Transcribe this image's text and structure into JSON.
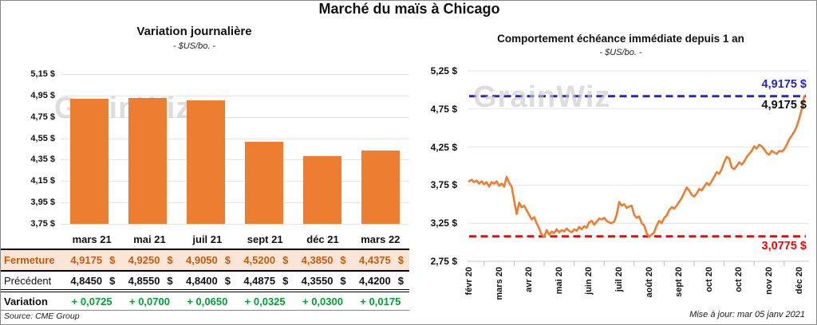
{
  "page": {
    "title": "Marché du maïs à Chicago",
    "watermark": "GrainWiz",
    "source_note": "Source: CME Group",
    "update_note": "Mise à jour: mar 05 janv 2021"
  },
  "colors": {
    "orange": "#ED7D31",
    "close_row_bg": "#FBE5D6",
    "close_text": "#C55A11",
    "variation_green": "#00A033",
    "ref_blue": "#2525CB",
    "ref_red": "#FE0000",
    "gridline": "#E4E4E4"
  },
  "chart_data": [
    {
      "type": "bar",
      "title": "Variation journalière",
      "subtitle": "- $US/bo. -",
      "categories": [
        "mars 21",
        "mai 21",
        "juil 21",
        "sept 21",
        "déc 21",
        "mars 22"
      ],
      "values": [
        4.9175,
        4.925,
        4.905,
        4.52,
        4.385,
        4.4375
      ],
      "ylim": [
        3.75,
        5.15
      ],
      "yticks": [
        5.15,
        4.95,
        4.75,
        4.55,
        4.35,
        4.15,
        3.95,
        3.75
      ],
      "ytick_labels": [
        "5,15 $",
        "4,95 $",
        "4,75 $",
        "4,55 $",
        "4,35 $",
        "4,15 $",
        "3,95 $",
        "3,75 $"
      ],
      "grid": true,
      "bar_color": "#ED7D31"
    },
    {
      "type": "line",
      "title": "Comportement échéance immédiate depuis 1 an",
      "subtitle": "- $US/bo. -",
      "x_labels": [
        "févr 20",
        "mars 20",
        "avr 20",
        "mai 20",
        "juin 20",
        "juil 20",
        "août 20",
        "sept 20",
        "oct 20",
        "oct 20",
        "nov 20",
        "déc 20"
      ],
      "ylim": [
        2.75,
        5.25
      ],
      "yticks": [
        5.25,
        4.75,
        4.25,
        3.75,
        3.25,
        2.75
      ],
      "ytick_labels": [
        "5,25 $",
        "4,75 $",
        "4,25 $",
        "3,75 $",
        "3,25 $",
        "2,75 $"
      ],
      "grid": true,
      "line_color": "#ED7D31",
      "ref_lines": [
        {
          "value": 4.9175,
          "label": "4,9175 $",
          "color": "#2525CB",
          "style": "dashed",
          "position": "high"
        },
        {
          "value": 3.0775,
          "label": "3,0775 $",
          "color": "#FE0000",
          "style": "dashed",
          "position": "low"
        }
      ],
      "last_value": 4.9175,
      "last_label": "4,9175 $",
      "values": [
        3.8,
        3.82,
        3.79,
        3.81,
        3.77,
        3.8,
        3.76,
        3.79,
        3.73,
        3.79,
        3.77,
        3.8,
        3.74,
        3.77,
        3.73,
        3.86,
        3.78,
        3.73,
        3.55,
        3.37,
        3.52,
        3.46,
        3.48,
        3.42,
        3.36,
        3.3,
        3.33,
        3.25,
        3.18,
        3.1,
        3.07,
        3.16,
        3.1,
        3.14,
        3.12,
        3.17,
        3.13,
        3.16,
        3.14,
        3.18,
        3.15,
        3.13,
        3.17,
        3.15,
        3.2,
        3.17,
        3.21,
        3.19,
        3.26,
        3.28,
        3.23,
        3.27,
        3.31,
        3.3,
        3.32,
        3.28,
        3.26,
        3.25,
        3.27,
        3.36,
        3.53,
        3.48,
        3.5,
        3.45,
        3.47,
        3.48,
        3.36,
        3.32,
        3.34,
        3.25,
        3.22,
        3.12,
        3.07,
        3.1,
        3.13,
        3.22,
        3.28,
        3.25,
        3.32,
        3.35,
        3.42,
        3.46,
        3.44,
        3.48,
        3.53,
        3.58,
        3.65,
        3.72,
        3.68,
        3.62,
        3.6,
        3.64,
        3.7,
        3.68,
        3.73,
        3.78,
        3.75,
        3.8,
        3.86,
        3.92,
        3.9,
        3.96,
        4.05,
        4.12,
        4.1,
        3.98,
        3.96,
        4.0,
        4.05,
        4.02,
        4.06,
        4.12,
        4.16,
        4.2,
        4.26,
        4.23,
        4.28,
        4.26,
        4.22,
        4.17,
        4.15,
        4.2,
        4.18,
        4.16,
        4.2,
        4.19,
        4.22,
        4.28,
        4.35,
        4.4,
        4.45,
        4.52,
        4.62,
        4.75,
        4.9175
      ]
    }
  ],
  "table": {
    "col_headers": [
      "mars 21",
      "mai 21",
      "juil 21",
      "sept 21",
      "déc 21",
      "mars 22"
    ],
    "currency": "$",
    "rows": [
      {
        "label": "Fermeture",
        "values": [
          "4,9175",
          "4,9250",
          "4,9050",
          "4,5200",
          "4,3850",
          "4,4375"
        ],
        "with_currency": true
      },
      {
        "label": "Précédent",
        "values": [
          "4,8450",
          "4,8550",
          "4,8400",
          "4,4875",
          "4,3550",
          "4,4200"
        ],
        "with_currency": true
      },
      {
        "label": "Variation",
        "values": [
          "+ 0,0725",
          "+ 0,0700",
          "+ 0,0650",
          "+ 0,0325",
          "+ 0,0300",
          "+ 0,0175"
        ],
        "with_currency": false
      }
    ]
  }
}
